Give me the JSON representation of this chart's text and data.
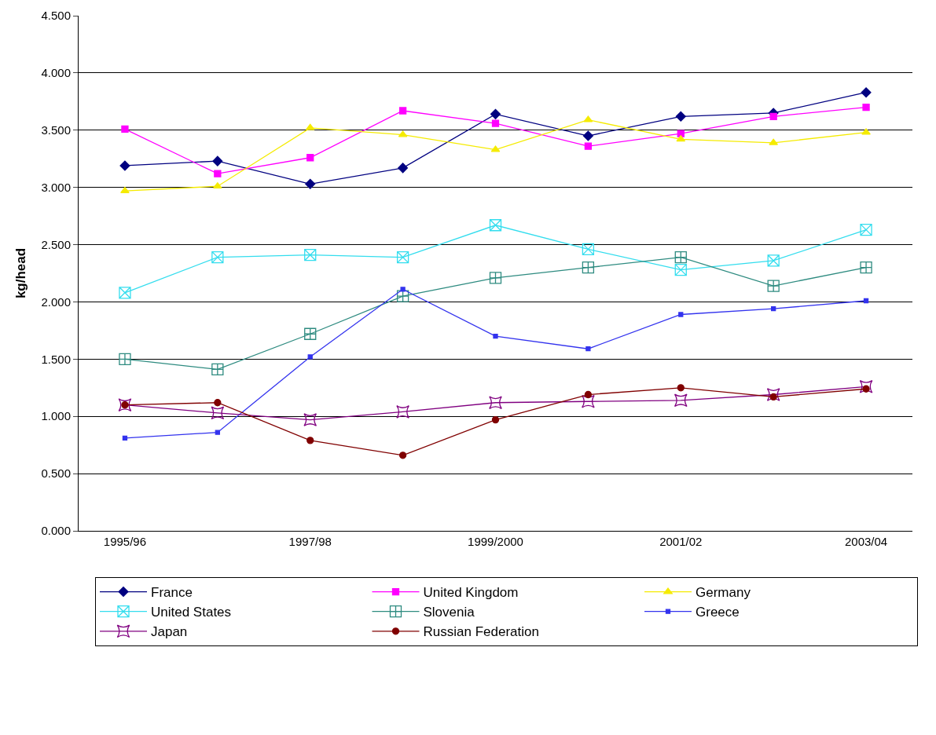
{
  "chart_data": {
    "type": "line",
    "ylabel": "kg/head",
    "categories": [
      "1995/96",
      null,
      "1997/98",
      null,
      "1999/2000",
      null,
      "2001/02",
      null,
      "2003/04"
    ],
    "ylim": [
      0,
      4.5
    ],
    "yticks": [
      {
        "value": 0,
        "label": "0.000"
      },
      {
        "value": 0.5,
        "label": "0.500"
      },
      {
        "value": 1,
        "label": "1.000"
      },
      {
        "value": 1.5,
        "label": "1.500"
      },
      {
        "value": 2,
        "label": "2.000"
      },
      {
        "value": 2.5,
        "label": "2.500"
      },
      {
        "value": 3,
        "label": "3.000"
      },
      {
        "value": 3.5,
        "label": "3.500"
      },
      {
        "value": 4,
        "label": "4.000"
      },
      {
        "value": 4.5,
        "label": "4.500"
      }
    ],
    "grid": "y",
    "legend": "bottom",
    "series": [
      {
        "name": "France",
        "color": "#000080",
        "marker": "diamond",
        "values": [
          3.19,
          3.23,
          3.03,
          3.17,
          3.64,
          3.45,
          3.62,
          3.65,
          3.83
        ]
      },
      {
        "name": "United Kingdom",
        "color": "#ff00ff",
        "marker": "square",
        "values": [
          3.51,
          3.12,
          3.26,
          3.67,
          3.56,
          3.36,
          3.47,
          3.62,
          3.7
        ]
      },
      {
        "name": "Germany",
        "color": "#f5eb00",
        "marker": "triangle",
        "values": [
          2.97,
          3.01,
          3.52,
          3.46,
          3.33,
          3.59,
          3.42,
          3.39,
          3.48
        ]
      },
      {
        "name": "United States",
        "color": "#33ddee",
        "marker": "cross",
        "values": [
          2.08,
          2.39,
          2.41,
          2.39,
          2.67,
          2.46,
          2.28,
          2.36,
          2.63
        ]
      },
      {
        "name": "Slovenia",
        "color": "#2e8b80",
        "marker": "cross",
        "values": [
          1.5,
          1.41,
          1.72,
          2.05,
          2.21,
          2.3,
          2.39,
          2.14,
          2.3
        ]
      },
      {
        "name": "Greece",
        "color": "#3333ee",
        "marker": "square",
        "values": [
          0.81,
          0.86,
          1.52,
          2.11,
          1.7,
          1.59,
          1.89,
          1.94,
          2.01
        ]
      },
      {
        "name": "Japan",
        "color": "#800080",
        "marker": "star",
        "values": [
          1.1,
          1.03,
          0.97,
          1.04,
          1.12,
          1.13,
          1.14,
          1.19,
          1.26
        ]
      },
      {
        "name": "Russian Federation",
        "color": "#800000",
        "marker": "circle",
        "values": [
          1.1,
          1.12,
          0.79,
          0.66,
          0.97,
          1.19,
          1.25,
          1.17,
          1.24
        ]
      }
    ]
  }
}
